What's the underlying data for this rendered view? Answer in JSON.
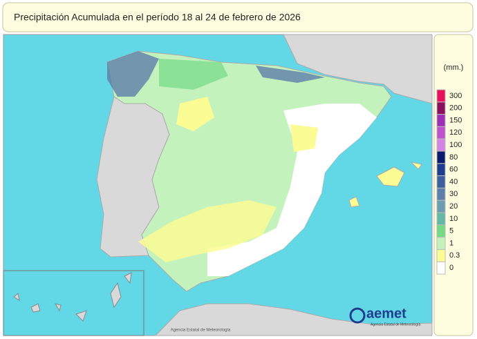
{
  "header": {
    "title": "Precipitación Acumulada en el período 18 al 24 de febrero de 2026"
  },
  "legend": {
    "unit": "(mm.)",
    "items": [
      {
        "label": 300,
        "color": "#e8125c"
      },
      {
        "label": 200,
        "color": "#8c0f5e"
      },
      {
        "label": 150,
        "color": "#9c2fb4"
      },
      {
        "label": 120,
        "color": "#bf52cc"
      },
      {
        "label": 100,
        "color": "#d384e2"
      },
      {
        "label": 80,
        "color": "#0c1c6c"
      },
      {
        "label": 60,
        "color": "#1f3d8c"
      },
      {
        "label": 40,
        "color": "#3d5e9c"
      },
      {
        "label": 30,
        "color": "#5d7ea9"
      },
      {
        "label": 20,
        "color": "#6c9cb2"
      },
      {
        "label": 10,
        "color": "#62baa6"
      },
      {
        "label": 5,
        "color": "#74da84"
      },
      {
        "label": 1,
        "color": "#c4f2bc"
      },
      {
        "label": 0.3,
        "color": "#fcfc94"
      },
      {
        "label": 0,
        "color": "#ffffff"
      }
    ]
  },
  "footer": {
    "watermark": "Agencia Estatal de Meteorología",
    "logo": "aemet",
    "logo_subtitle": "Agencia Estatal de Meteorología"
  }
}
